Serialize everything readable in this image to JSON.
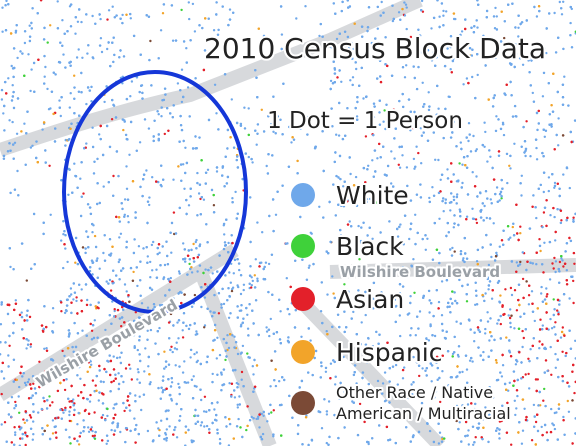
{
  "map": {
    "title": "2010 Census Block Data",
    "subtitle": "1 Dot = 1 Person",
    "legend": [
      {
        "label": "White",
        "color": "#6fa8ea"
      },
      {
        "label": "Black",
        "color": "#3fd13a"
      },
      {
        "label": "Asian",
        "color": "#e3202a"
      },
      {
        "label": "Hispanic",
        "color": "#f2a42a"
      },
      {
        "label": "Other Race / Native American / Multiracial",
        "color": "#7b4a36"
      }
    ],
    "streets": [
      "Wilshire Boulevard",
      "Wilshire Boulevard"
    ]
  }
}
